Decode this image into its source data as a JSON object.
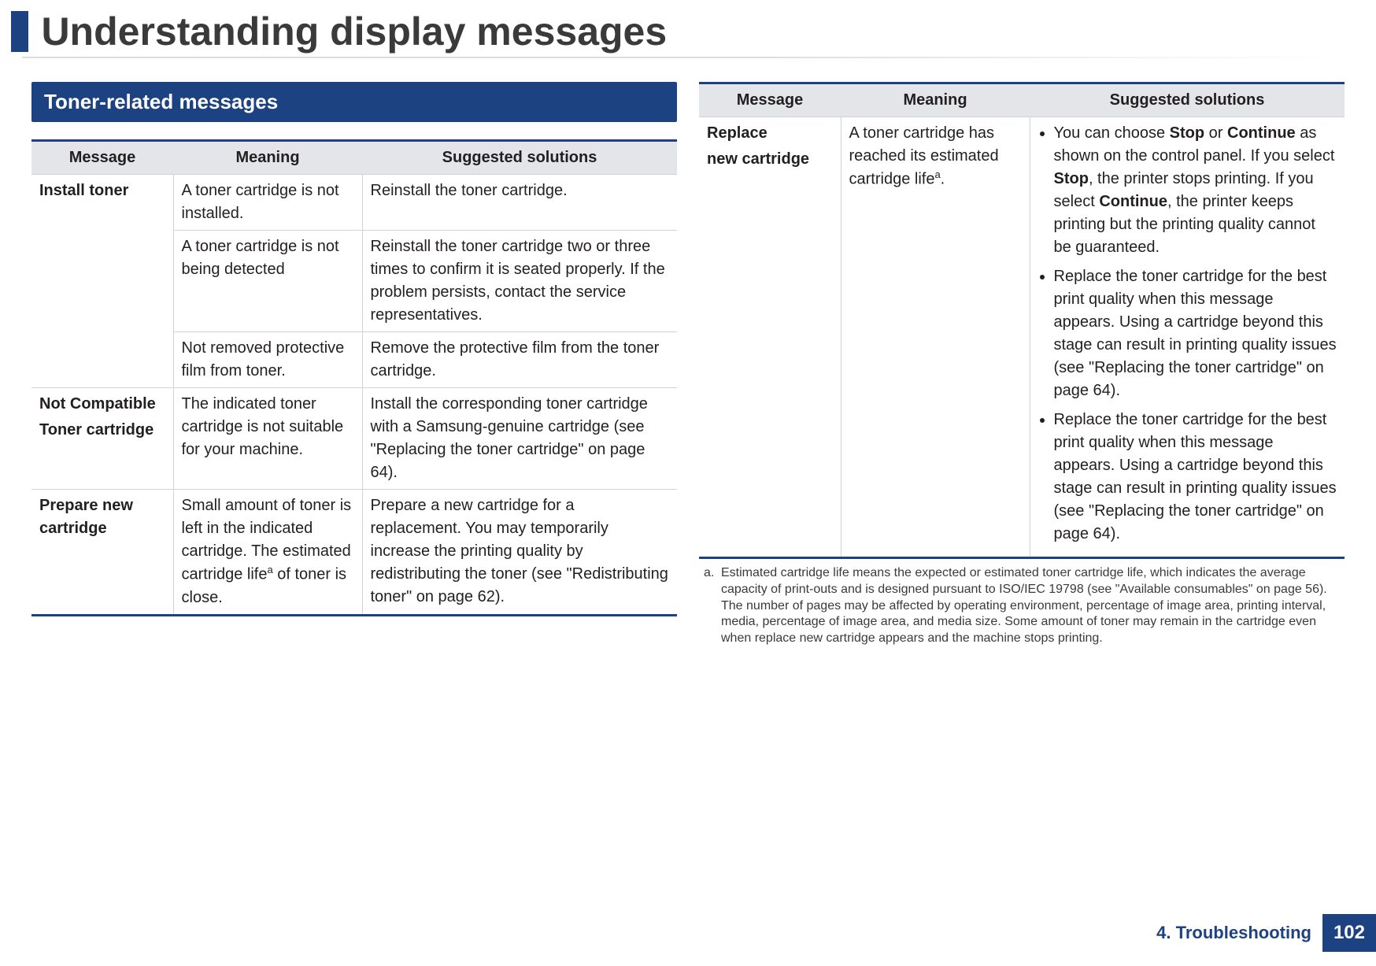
{
  "colors": {
    "brand_blue": "#1d4282",
    "header_gray": "#e3e5e8",
    "rule_gray": "#d0d2d5",
    "text": "#231f20"
  },
  "page": {
    "title": "Understanding display messages",
    "chapter_label": "4. Troubleshooting",
    "page_number": "102"
  },
  "section": {
    "title": "Toner-related messages"
  },
  "table_headers": {
    "message": "Message",
    "meaning": "Meaning",
    "solutions": "Suggested solutions"
  },
  "left_rows": [
    {
      "message_main": "Install toner",
      "message_sub": "",
      "rowspan": 3,
      "sub": [
        {
          "meaning": "A toner cartridge is not installed.",
          "solution": "Reinstall the toner cartridge."
        },
        {
          "meaning": "A toner cartridge is not being detected",
          "solution": "Reinstall the toner cartridge two or three times to confirm it is seated properly. If the problem persists, contact the service representatives."
        },
        {
          "meaning": "Not removed protective film from toner.",
          "solution": "Remove the protective film from the toner cartridge."
        }
      ]
    },
    {
      "message_main": "Not Compatible",
      "message_sub": "Toner cartridge",
      "meaning": "The indicated toner cartridge is not suitable for your machine.",
      "solution": "Install the corresponding toner cartridge with a Samsung-genuine cartridge (see \"Replacing the toner cartridge\" on page 64)."
    },
    {
      "message_main": "Prepare new cartridge",
      "message_sub": "",
      "meaning_pre": "Small amount of toner is left in the indicated cartridge. The estimated cartridge life",
      "meaning_sup": "a",
      "meaning_post": " of toner is close.",
      "solution": "Prepare a new cartridge for a replacement. You may temporarily increase the printing quality by redistributing the toner (see \"Redistributing toner\" on page 62)."
    }
  ],
  "right_row": {
    "message_main": "Replace",
    "message_sub": " new cartridge",
    "meaning_pre": "A toner cartridge has reached its estimated cartridge life",
    "meaning_sup": "a",
    "meaning_post": ".",
    "bullets": [
      {
        "pre": "You can choose ",
        "b1": "Stop",
        "mid1": " or ",
        "b2": "Continue",
        "mid2": " as shown on the control panel. If you select ",
        "b3": "Stop",
        "mid3": ", the printer stops printing. If you select ",
        "b4": "Continue",
        "post": ", the printer keeps printing but the printing quality cannot be guaranteed."
      },
      {
        "text": "Replace the toner cartridge for the best print quality when this message appears. Using a cartridge beyond this stage can result in printing quality issues (see \"Replacing the toner cartridge\" on page 64)."
      },
      {
        "text": "Replace the toner cartridge for the best print quality when this message appears. Using a cartridge beyond this stage can result in printing quality issues (see \"Replacing the toner cartridge\" on page 64)."
      }
    ]
  },
  "footnote": {
    "label": "a.",
    "text": "Estimated cartridge life means the expected or estimated toner cartridge life, which indicates the average capacity of print-outs and is designed pursuant to ISO/IEC 19798 (see \"Available consumables\" on page 56). The number of pages may be affected by operating environment, percentage of image area, printing interval, media, percentage of image area, and media size. Some amount of toner may remain in the cartridge even when replace new cartridge appears and the machine stops printing."
  }
}
